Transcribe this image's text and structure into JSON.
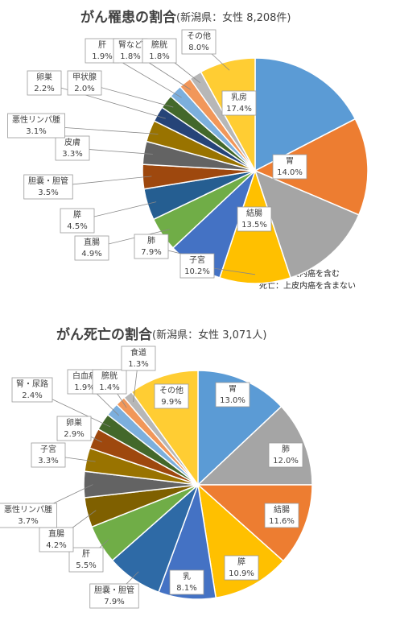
{
  "chart_data": [
    {
      "type": "pie",
      "title": "がん罹患の割合",
      "subtitle": "(新潟県：女性 8,208件)",
      "categories": [
        "乳房",
        "胃",
        "結腸",
        "子宮",
        "肺",
        "直腸",
        "膵",
        "胆嚢・胆管",
        "皮膚",
        "悪性リンパ腫",
        "卵巣",
        "甲状腺",
        "肝",
        "腎など",
        "膀胱",
        "その他"
      ],
      "values": [
        17.4,
        14.0,
        13.5,
        10.2,
        7.9,
        4.9,
        4.5,
        3.5,
        3.3,
        3.1,
        2.2,
        2.0,
        1.9,
        1.8,
        1.8,
        8.0
      ],
      "value_labels": [
        "17.4%",
        "14.0%",
        "13.5%",
        "10.2%",
        "7.9%",
        "4.9%",
        "4.5%",
        "3.5%",
        "3.3%",
        "3.1%",
        "2.2%",
        "2.0%",
        "1.9%",
        "1.8%",
        "1.8%",
        "8.0%"
      ],
      "colors": [
        "#5b9bd5",
        "#ed7d31",
        "#a5a5a5",
        "#ffc000",
        "#4472c4",
        "#70ad47",
        "#255e91",
        "#9e480e",
        "#636363",
        "#997300",
        "#264478",
        "#43682b",
        "#7cafdd",
        "#f1975a",
        "#b7b7b7",
        "#ffcd33"
      ],
      "annotations": [
        "罹患：上皮内癌を含む",
        "死亡：上皮内癌を含まない"
      ]
    },
    {
      "type": "pie",
      "title": "がん死亡の割合",
      "subtitle": "(新潟県：女性 3,071人)",
      "categories": [
        "胃",
        "肺",
        "結腸",
        "膵",
        "乳",
        "胆嚢・胆管",
        "肝",
        "直腸",
        "悪性リンパ腫",
        "子宮",
        "卵巣",
        "腎・尿路",
        "白血病",
        "膀胱",
        "食道",
        "その他"
      ],
      "values": [
        13.0,
        12.0,
        11.6,
        10.9,
        8.1,
        7.9,
        5.5,
        4.2,
        3.7,
        3.3,
        2.9,
        2.4,
        1.9,
        1.4,
        1.3,
        9.9
      ],
      "value_labels": [
        "13.0%",
        "12.0%",
        "11.6%",
        "10.9%",
        "8.1%",
        "7.9%",
        "5.5%",
        "4.2%",
        "3.7%",
        "3.3%",
        "2.9%",
        "2.4%",
        "1.9%",
        "1.4%",
        "1.3%",
        "9.9%"
      ],
      "colors": [
        "#5b9bd5",
        "#a5a5a5",
        "#ed7d31",
        "#ffc000",
        "#4472c4",
        "#2e6aa6",
        "#70ad47",
        "#7f6000",
        "#636363",
        "#997300",
        "#9e480e",
        "#43682b",
        "#7cafdd",
        "#f1975a",
        "#b7b7b7",
        "#ffcd33"
      ]
    }
  ]
}
